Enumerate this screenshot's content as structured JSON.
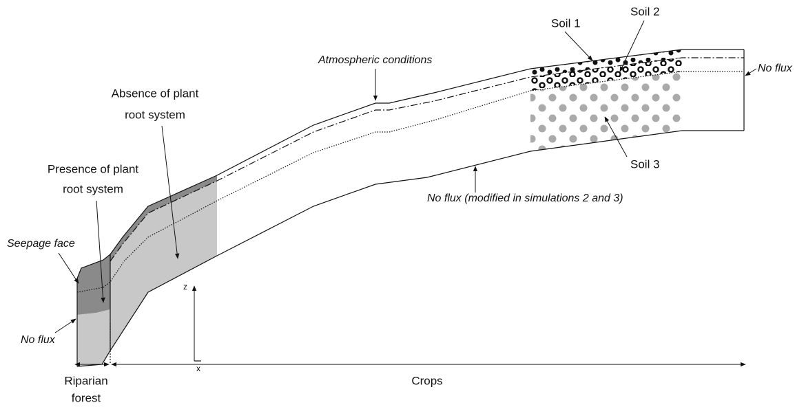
{
  "labels": {
    "soil_1": "Soil 1",
    "soil_2": "Soil 2",
    "soil_3": "Soil 3",
    "atmospheric": "Atmospheric conditions",
    "no_flux_right": "No flux",
    "no_flux_left": "No flux",
    "no_flux_bottom": "No flux (modified in simulations 2 and 3)",
    "absence": [
      "Absence of plant",
      "root system"
    ],
    "presence": [
      "Presence of plant",
      "root system"
    ],
    "seepage": "Seepage face",
    "axis_z": "z",
    "axis_x": "x",
    "riparian": [
      "Riparian",
      "forest"
    ],
    "crops": "Crops"
  }
}
